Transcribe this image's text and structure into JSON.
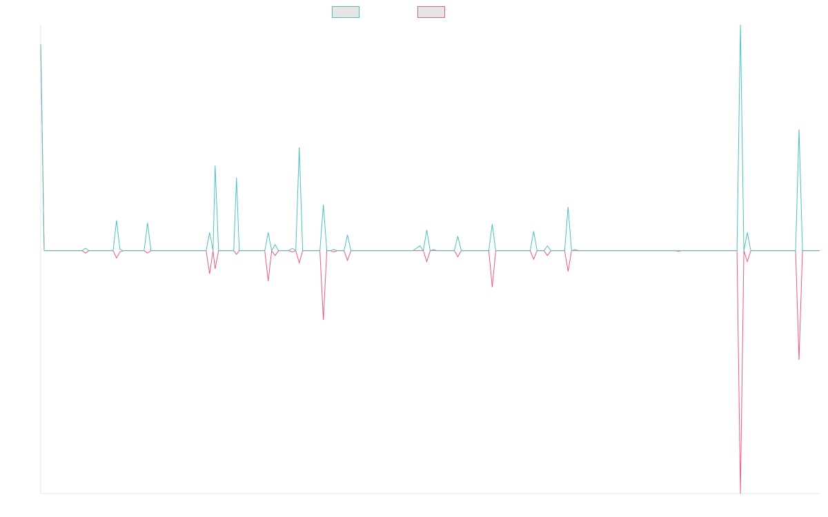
{
  "chart_data": {
    "type": "line",
    "title": "",
    "xlabel": "",
    "ylabel": "",
    "legend": {
      "placement": "top-center"
    },
    "grid": false,
    "ylim": [
      -0.2,
      0.186
    ],
    "xlim": [
      0,
      113
    ],
    "series": [
      {
        "color": "#4bc0c0",
        "legend_fill": "#e6e6e6",
        "points": [
          [
            0,
            0.17
          ],
          [
            0.5,
            0
          ],
          [
            6,
            0
          ],
          [
            6.5,
            0.002
          ],
          [
            7,
            0
          ],
          [
            10.5,
            0
          ],
          [
            11,
            0.025
          ],
          [
            11.5,
            0.001
          ],
          [
            12,
            0
          ],
          [
            15,
            0
          ],
          [
            15.5,
            0.023
          ],
          [
            16,
            0
          ],
          [
            24,
            0
          ],
          [
            24.5,
            0.015
          ],
          [
            25,
            0
          ],
          [
            25.3,
            0.07
          ],
          [
            25.8,
            0
          ],
          [
            28,
            0
          ],
          [
            28.4,
            0.06
          ],
          [
            28.8,
            0
          ],
          [
            32.5,
            0
          ],
          [
            33,
            0.015
          ],
          [
            33.5,
            0
          ],
          [
            34,
            0.005
          ],
          [
            34.5,
            0
          ],
          [
            36,
            0
          ],
          [
            36.5,
            0.002
          ],
          [
            37,
            0
          ],
          [
            37.5,
            0.085
          ],
          [
            38,
            0
          ],
          [
            40.5,
            0
          ],
          [
            41,
            0.038
          ],
          [
            41.5,
            0
          ],
          [
            42,
            0
          ],
          [
            42.5,
            0.001
          ],
          [
            43,
            0
          ],
          [
            44,
            0
          ],
          [
            44.5,
            0.013
          ],
          [
            45,
            0
          ],
          [
            54,
            0
          ],
          [
            55,
            0.004
          ],
          [
            55.5,
            0
          ],
          [
            56,
            0.017
          ],
          [
            56.5,
            0
          ],
          [
            57,
            0.001
          ],
          [
            57.5,
            0
          ],
          [
            60,
            0
          ],
          [
            60.5,
            0.012
          ],
          [
            61,
            0
          ],
          [
            65,
            0
          ],
          [
            65.5,
            0.022
          ],
          [
            66,
            0
          ],
          [
            71,
            0
          ],
          [
            71.5,
            0.016
          ],
          [
            72,
            0
          ],
          [
            73,
            0
          ],
          [
            73.5,
            0.004
          ],
          [
            74,
            0
          ],
          [
            76,
            0
          ],
          [
            76.5,
            0.036
          ],
          [
            77,
            0
          ],
          [
            77.5,
            0.001
          ],
          [
            78,
            0
          ],
          [
            101,
            0
          ],
          [
            101.5,
            0.186
          ],
          [
            102,
            0
          ],
          [
            102.5,
            0.015
          ],
          [
            103,
            0
          ],
          [
            109.5,
            0
          ],
          [
            110,
            0.1
          ],
          [
            110.5,
            0
          ],
          [
            113,
            0
          ]
        ]
      },
      {
        "color": "#f0577f",
        "legend_fill": "#e6e6e6",
        "points": [
          [
            0,
            0.17
          ],
          [
            0.5,
            0
          ],
          [
            6,
            0
          ],
          [
            6.5,
            -0.002
          ],
          [
            7,
            0
          ],
          [
            10.5,
            0
          ],
          [
            11,
            -0.006
          ],
          [
            11.5,
            -0.001
          ],
          [
            12,
            0
          ],
          [
            15,
            0
          ],
          [
            15.5,
            -0.002
          ],
          [
            16,
            0
          ],
          [
            24,
            0
          ],
          [
            24.5,
            -0.019
          ],
          [
            25,
            0
          ],
          [
            25.3,
            -0.015
          ],
          [
            25.8,
            0
          ],
          [
            28,
            0
          ],
          [
            28.4,
            -0.003
          ],
          [
            28.8,
            0
          ],
          [
            32.5,
            0
          ],
          [
            33,
            -0.025
          ],
          [
            33.5,
            0
          ],
          [
            34,
            -0.004
          ],
          [
            34.5,
            0
          ],
          [
            36,
            0
          ],
          [
            36.5,
            -0.001
          ],
          [
            37,
            0
          ],
          [
            37.5,
            -0.01
          ],
          [
            38,
            0
          ],
          [
            40.5,
            0
          ],
          [
            41,
            -0.057
          ],
          [
            41.5,
            0
          ],
          [
            42,
            0
          ],
          [
            42.5,
            -0.001
          ],
          [
            43,
            0
          ],
          [
            44,
            0
          ],
          [
            44.5,
            -0.008
          ],
          [
            45,
            0
          ],
          [
            54,
            0
          ],
          [
            55,
            0
          ],
          [
            55.5,
            0
          ],
          [
            56,
            -0.009
          ],
          [
            56.5,
            0
          ],
          [
            57,
            0
          ],
          [
            57.5,
            0
          ],
          [
            60,
            0
          ],
          [
            60.5,
            -0.005
          ],
          [
            61,
            0
          ],
          [
            65,
            0
          ],
          [
            65.5,
            -0.03
          ],
          [
            66,
            0
          ],
          [
            71,
            0
          ],
          [
            71.5,
            -0.007
          ],
          [
            72,
            0
          ],
          [
            73,
            0
          ],
          [
            73.5,
            -0.004
          ],
          [
            74,
            0
          ],
          [
            76,
            0
          ],
          [
            76.5,
            -0.017
          ],
          [
            77,
            0
          ],
          [
            77.5,
            0
          ],
          [
            78,
            0
          ],
          [
            92,
            0
          ],
          [
            92.5,
            -0.0005
          ],
          [
            93,
            0
          ],
          [
            101,
            0
          ],
          [
            101.5,
            -0.2
          ],
          [
            102,
            0
          ],
          [
            102.5,
            -0.009
          ],
          [
            103,
            0
          ],
          [
            109.5,
            0
          ],
          [
            110,
            -0.09
          ],
          [
            110.5,
            0
          ],
          [
            113,
            0
          ]
        ]
      }
    ]
  }
}
